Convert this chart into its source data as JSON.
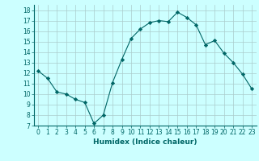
{
  "x": [
    0,
    1,
    2,
    3,
    4,
    5,
    6,
    7,
    8,
    9,
    10,
    11,
    12,
    13,
    14,
    15,
    16,
    17,
    18,
    19,
    20,
    21,
    22,
    23
  ],
  "y": [
    12.2,
    11.5,
    10.2,
    10.0,
    9.5,
    9.2,
    7.2,
    8.0,
    11.1,
    13.3,
    15.3,
    16.2,
    16.8,
    17.0,
    16.9,
    17.8,
    17.3,
    16.6,
    14.7,
    15.1,
    13.9,
    13.0,
    11.9,
    10.5
  ],
  "xlabel": "Humidex (Indice chaleur)",
  "ylabel": "",
  "xlim": [
    -0.5,
    23.5
  ],
  "ylim": [
    7,
    18.5
  ],
  "yticks": [
    7,
    8,
    9,
    10,
    11,
    12,
    13,
    14,
    15,
    16,
    17,
    18
  ],
  "xticks": [
    0,
    1,
    2,
    3,
    4,
    5,
    6,
    7,
    8,
    9,
    10,
    11,
    12,
    13,
    14,
    15,
    16,
    17,
    18,
    19,
    20,
    21,
    22,
    23
  ],
  "line_color": "#006666",
  "bg_color": "#ccffff",
  "grid_color": "#aacccc",
  "marker": "D",
  "marker_size": 2.2,
  "tick_fontsize": 5.5,
  "xlabel_fontsize": 6.5
}
